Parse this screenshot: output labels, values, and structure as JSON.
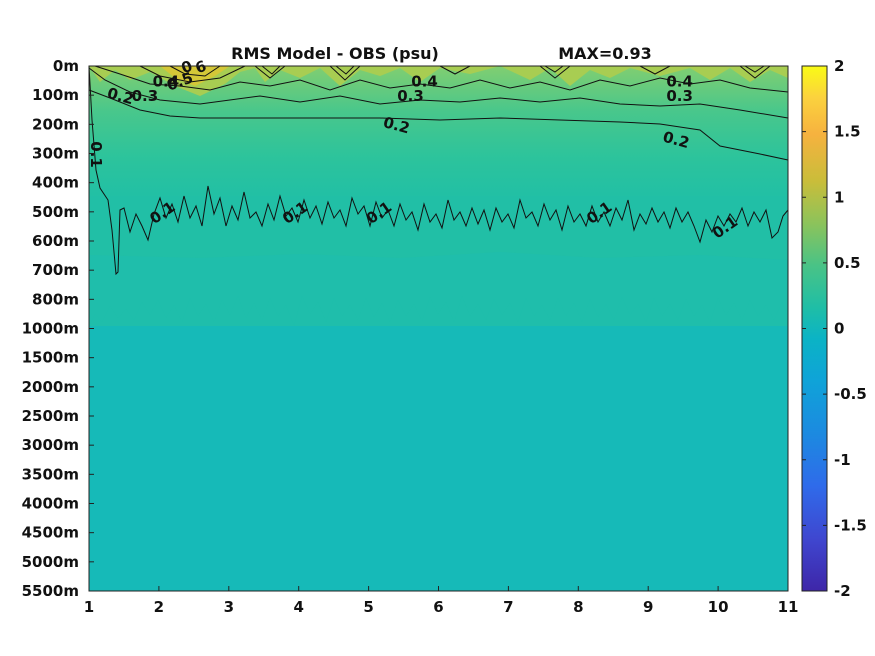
{
  "title": "RMS Model - OBS (psu)",
  "max_label": "MAX=0.93",
  "colors": {
    "cmap_low": "#3e26a8",
    "cmap_mid": "#12bab8",
    "cmap_high": "#f9fb15",
    "field_background": "#1abcac"
  },
  "chart_data": {
    "type": "heatmap",
    "title": "RMS Model - OBS (psu)",
    "annotation": "MAX=0.93",
    "xlabel": "",
    "ylabel": "",
    "x_ticks": [
      "1",
      "2",
      "3",
      "4",
      "5",
      "6",
      "7",
      "8",
      "9",
      "10",
      "11"
    ],
    "xlim": [
      1,
      11
    ],
    "y_ticks": [
      "0m",
      "100m",
      "200m",
      "300m",
      "400m",
      "500m",
      "600m",
      "700m",
      "800m",
      "1000m",
      "1500m",
      "2000m",
      "2500m",
      "3000m",
      "3500m",
      "4000m",
      "4500m",
      "5000m",
      "5500m"
    ],
    "colorbar": {
      "ticks": [
        "2",
        "1.5",
        "1",
        "0.5",
        "0",
        "-0.5",
        "-1",
        "-1.5",
        "-2"
      ],
      "range": [
        -2,
        2
      ],
      "colormap": "parula"
    },
    "contour_levels": [
      0.1,
      0.2,
      0.3,
      0.4,
      0.5,
      0.6
    ],
    "contours": [
      {
        "level": 0.1,
        "depth_by_x": [
          {
            "x": 1.1,
            "depth": "700m"
          },
          {
            "x": 2.0,
            "depth": "600m"
          },
          {
            "x": 3.0,
            "depth": "500m"
          },
          {
            "x": 4.0,
            "depth": "500m"
          },
          {
            "x": 5.0,
            "depth": "550m"
          },
          {
            "x": 6.0,
            "depth": "550m"
          },
          {
            "x": 7.0,
            "depth": "550m"
          },
          {
            "x": 8.0,
            "depth": "550m"
          },
          {
            "x": 9.0,
            "depth": "550m"
          },
          {
            "x": 10.0,
            "depth": "600m"
          },
          {
            "x": 11.0,
            "depth": "550m"
          }
        ]
      },
      {
        "level": 0.2,
        "depth_by_x": [
          {
            "x": 1.0,
            "depth": "100m"
          },
          {
            "x": 3.0,
            "depth": "200m"
          },
          {
            "x": 6.0,
            "depth": "200m"
          },
          {
            "x": 8.0,
            "depth": "200m"
          },
          {
            "x": 9.0,
            "depth": "250m"
          },
          {
            "x": 11.0,
            "depth": "300m"
          }
        ]
      },
      {
        "level": 0.3,
        "depth_by_x": [
          {
            "x": 1.5,
            "depth": "50m"
          },
          {
            "x": 3.0,
            "depth": "150m"
          },
          {
            "x": 6.0,
            "depth": "100m"
          },
          {
            "x": 9.0,
            "depth": "100m"
          },
          {
            "x": 11.0,
            "depth": "200m"
          }
        ]
      },
      {
        "level": 0.4,
        "depth_by_x": [
          {
            "x": 2.0,
            "depth": "50m"
          },
          {
            "x": 4.0,
            "depth": "100m"
          },
          {
            "x": 6.0,
            "depth": "100m"
          },
          {
            "x": 9.0,
            "depth": "100m"
          },
          {
            "x": 11.0,
            "depth": "100m"
          }
        ]
      }
    ],
    "contour_labels": [
      {
        "text": "0.1",
        "x": 1.1,
        "depth": "300m"
      },
      {
        "text": "0.1",
        "x": 2.05,
        "depth": "500m"
      },
      {
        "text": "0.1",
        "x": 3.95,
        "depth": "500m"
      },
      {
        "text": "0.1",
        "x": 5.15,
        "depth": "500m"
      },
      {
        "text": "0.1",
        "x": 8.3,
        "depth": "500m"
      },
      {
        "text": "0.1",
        "x": 10.1,
        "depth": "550m"
      },
      {
        "text": "0.2",
        "x": 1.45,
        "depth": "100m"
      },
      {
        "text": "0.2",
        "x": 5.4,
        "depth": "200m"
      },
      {
        "text": "0.2",
        "x": 9.4,
        "depth": "250m"
      },
      {
        "text": "0.3",
        "x": 1.8,
        "depth": "100m"
      },
      {
        "text": "0.3",
        "x": 5.6,
        "depth": "100m"
      },
      {
        "text": "0.3",
        "x": 9.45,
        "depth": "100m"
      },
      {
        "text": "0.4",
        "x": 2.1,
        "depth": "50m"
      },
      {
        "text": "0.4",
        "x": 5.8,
        "depth": "50m"
      },
      {
        "text": "0.4",
        "x": 9.45,
        "depth": "50m"
      },
      {
        "text": "0.5",
        "x": 2.3,
        "depth": "50m"
      },
      {
        "text": "6",
        "x": 2.6,
        "depth": "0m"
      },
      {
        "text": "0",
        "x": 2.4,
        "depth": "0m"
      }
    ]
  }
}
